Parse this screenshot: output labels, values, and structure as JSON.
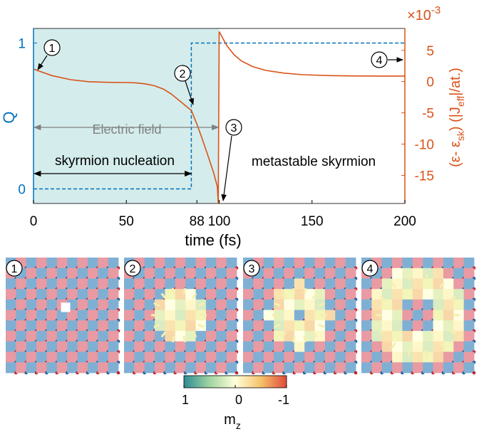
{
  "colors": {
    "q_axis": "#0072bd",
    "energy_axis": "#d95319",
    "field_shade": "#d4ecec",
    "annotation_gray": "#808080",
    "lattice_blue": "#7fb0d4",
    "lattice_red": "#e99aa3",
    "dot_blue": "#1f5f9e",
    "dot_red": "#c0262e"
  },
  "chart_data": {
    "type": "line",
    "xlabel": "time (fs)",
    "x_ticks": [
      "0",
      "50",
      "88",
      "100",
      "150",
      "200"
    ],
    "xlim": [
      0,
      200
    ],
    "left_axis": {
      "label": "Q",
      "ylim": [
        -0.1,
        1.1
      ],
      "ticks": [
        "0",
        "1"
      ],
      "tick_values": [
        0,
        1
      ]
    },
    "right_axis": {
      "label": "(ε - ε_sk) (|J_eff|/at.)",
      "label_parts": [
        "(ε- ε",
        "sk",
        ") (|J",
        "eff",
        "|/at.)"
      ],
      "multiplier": "×10",
      "multiplier_exp": "-3",
      "ylim": [
        -19.5,
        8.5
      ],
      "ticks": [
        "5",
        "0",
        "-5",
        "-10",
        "-15"
      ],
      "tick_values": [
        5,
        0,
        -5,
        -10,
        -15
      ]
    },
    "series": [
      {
        "axis": "left",
        "style": "dashed",
        "x": [
          0,
          85,
          85,
          200
        ],
        "y": [
          0,
          0,
          1,
          1
        ]
      },
      {
        "axis": "right",
        "style": "solid",
        "x": [
          0,
          10,
          20,
          30,
          40,
          50,
          55,
          60,
          65,
          70,
          74,
          78,
          82,
          85,
          88,
          91,
          94,
          97,
          99,
          99.5,
          100,
          104,
          108,
          112,
          118,
          125,
          135,
          145,
          160,
          175,
          190,
          200
        ],
        "y": [
          2.0,
          0.95,
          0.3,
          -0.02,
          -0.12,
          -0.15,
          -0.2,
          -0.35,
          -0.65,
          -1.2,
          -1.95,
          -2.9,
          -3.9,
          -4.6,
          -6.8,
          -9.3,
          -11.9,
          -14.6,
          -16.8,
          -19.5,
          8.0,
          5.8,
          4.3,
          3.3,
          2.4,
          1.8,
          1.35,
          1.1,
          0.95,
          0.9,
          0.88,
          0.88
        ]
      }
    ],
    "shaded_region": {
      "x_range": [
        0,
        100
      ],
      "label": "Electric field"
    },
    "annotations": [
      {
        "id": "marker-1",
        "text": "1",
        "t": 0
      },
      {
        "id": "marker-2",
        "text": "2",
        "t": 85
      },
      {
        "id": "marker-3",
        "text": "3",
        "t": 100
      },
      {
        "id": "marker-4",
        "text": "4",
        "t": 200
      },
      {
        "id": "span-electric-field",
        "text": "Electric field",
        "x_range": [
          0,
          100
        ]
      },
      {
        "id": "span-skyrmion-nucleation",
        "text": "skyrmion nucleation",
        "x_range": [
          0,
          85
        ]
      },
      {
        "id": "label-metastable",
        "text": "metastable skyrmion"
      }
    ]
  },
  "panels": [
    {
      "label": "1",
      "pattern": "dot"
    },
    {
      "label": "2",
      "pattern": "blob"
    },
    {
      "label": "3",
      "pattern": "ring_small"
    },
    {
      "label": "4",
      "pattern": "ring_large"
    }
  ],
  "colorbar": {
    "ticks": [
      "1",
      "0",
      "-1"
    ],
    "label": "m",
    "label_sub": "z",
    "stops": [
      "#2e8c96",
      "#a0d4a0",
      "#ffffd9",
      "#f6c26b",
      "#e14a3b"
    ]
  }
}
